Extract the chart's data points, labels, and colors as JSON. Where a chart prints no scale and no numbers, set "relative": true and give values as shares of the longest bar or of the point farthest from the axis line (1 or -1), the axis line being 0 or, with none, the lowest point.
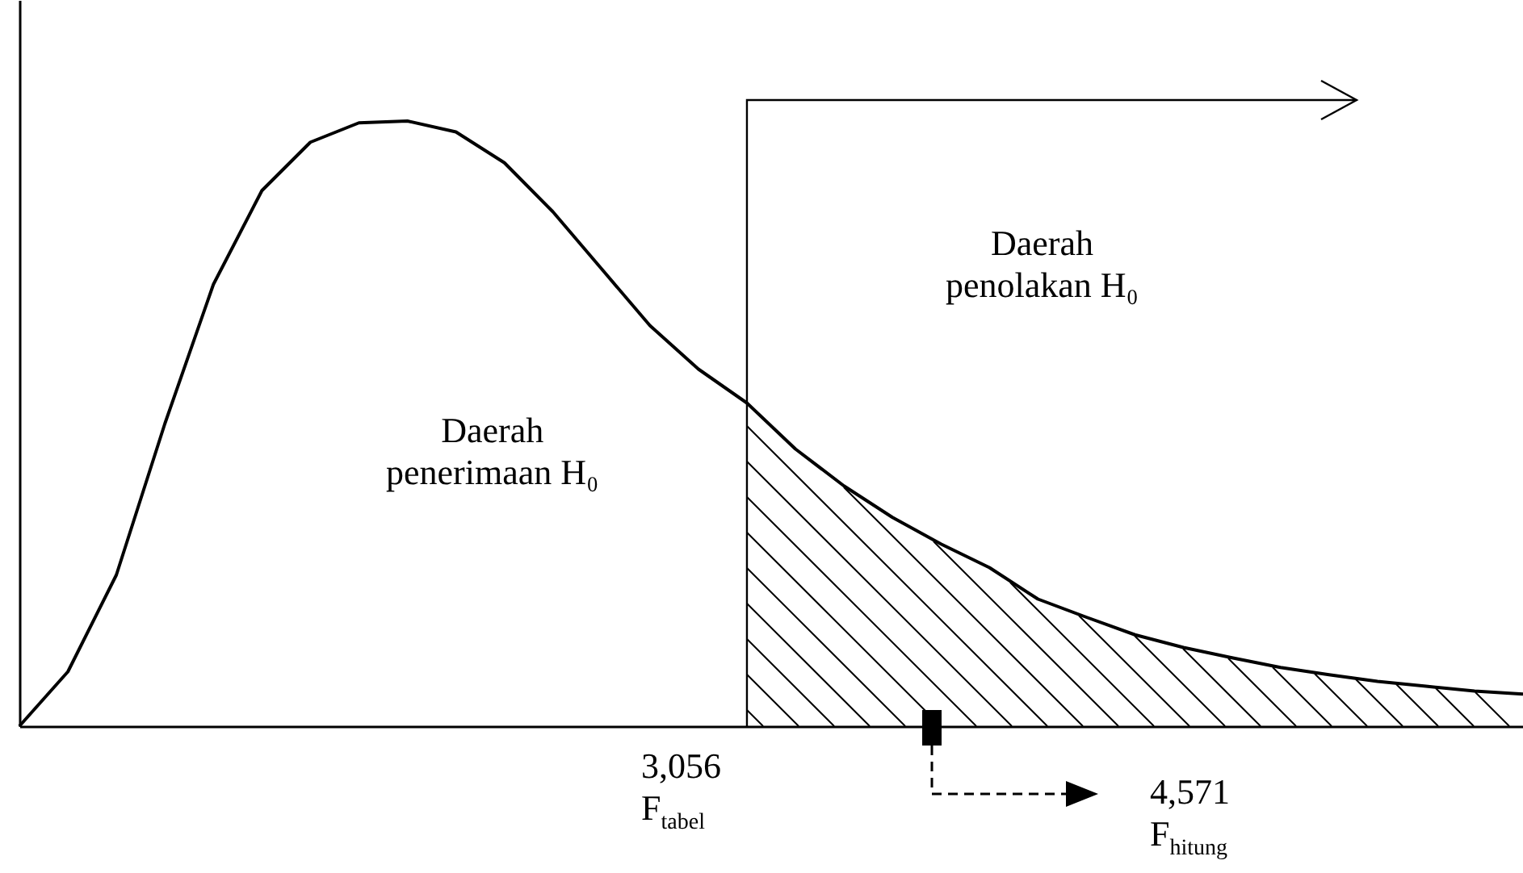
{
  "chart_data": {
    "type": "line",
    "relative": true,
    "grid": false,
    "categories": [
      null,
      null,
      null,
      null,
      null,
      null,
      null,
      null,
      null,
      null,
      null,
      null,
      null,
      null,
      null,
      null,
      null,
      null,
      null,
      null,
      null,
      null,
      null,
      null,
      null,
      null,
      null,
      null,
      null,
      null,
      null,
      null
    ],
    "series": [
      {
        "color": "#000000",
        "values": [
          0,
          0.09,
          0.25,
          0.5,
          0.73,
          0.885,
          0.965,
          0.997,
          1,
          0.982,
          0.931,
          0.85,
          0.756,
          0.662,
          0.59,
          0.534,
          0.458,
          0.397,
          0.345,
          0.301,
          0.262,
          0.21,
          0.18,
          0.151,
          0.13,
          0.113,
          0.097,
          0.085,
          0.074,
          0.066,
          0.058,
          0.053
        ]
      }
    ],
    "annotations": [
      "Daerah\npenerimaan H₀",
      "Daerah\npenolakan H₀",
      "3,056\nF$_{tabel}$",
      "4,571\nF$_{hitung}$"
    ]
  }
}
